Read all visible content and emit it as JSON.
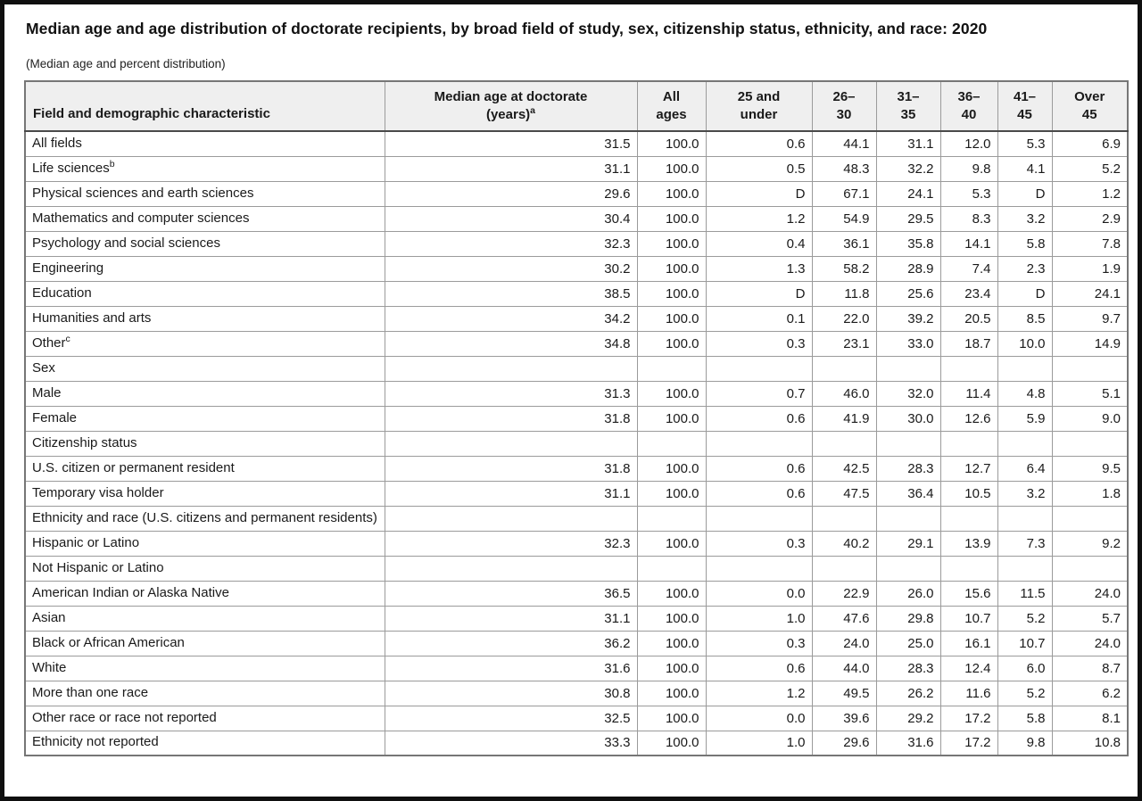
{
  "title": "Median age and age distribution of doctorate recipients, by broad field of study, sex, citizenship status, ethnicity, and race: 2020",
  "subtitle": "(Median age and percent distribution)",
  "colors": {
    "header_bg": "#efefef",
    "grid_line": "#9b9b9b",
    "header_bottom_border": "#4a4a4a",
    "table_outer_border": "#767676",
    "page_frame": "#0f0f0f",
    "text": "#1a1a1a"
  },
  "table": {
    "col_headers": {
      "field": "Field and demographic characteristic",
      "median_line1": "Median age at doctorate",
      "median_line2": "(years)",
      "median_sup": "a",
      "age_groups": [
        {
          "line1": "All",
          "line2": "ages"
        },
        {
          "line1": "25 and",
          "line2": "under"
        },
        {
          "line1": "26–",
          "line2": "30"
        },
        {
          "line1": "31–",
          "line2": "35"
        },
        {
          "line1": "36–",
          "line2": "40"
        },
        {
          "line1": "41–",
          "line2": "45"
        },
        {
          "line1": "Over",
          "line2": "45"
        }
      ]
    },
    "rows": [
      {
        "label": "All fields",
        "sup": "",
        "indent": 0,
        "values": [
          "31.5",
          "100.0",
          "0.6",
          "44.1",
          "31.1",
          "12.0",
          "5.3",
          "6.9"
        ]
      },
      {
        "label": "Life sciences",
        "sup": "b",
        "indent": 1,
        "values": [
          "31.1",
          "100.0",
          "0.5",
          "48.3",
          "32.2",
          "9.8",
          "4.1",
          "5.2"
        ]
      },
      {
        "label": "Physical sciences and earth sciences",
        "sup": "",
        "indent": 1,
        "values": [
          "29.6",
          "100.0",
          "D",
          "67.1",
          "24.1",
          "5.3",
          "D",
          "1.2"
        ]
      },
      {
        "label": "Mathematics and computer sciences",
        "sup": "",
        "indent": 1,
        "values": [
          "30.4",
          "100.0",
          "1.2",
          "54.9",
          "29.5",
          "8.3",
          "3.2",
          "2.9"
        ]
      },
      {
        "label": "Psychology and social sciences",
        "sup": "",
        "indent": 1,
        "values": [
          "32.3",
          "100.0",
          "0.4",
          "36.1",
          "35.8",
          "14.1",
          "5.8",
          "7.8"
        ]
      },
      {
        "label": "Engineering",
        "sup": "",
        "indent": 1,
        "values": [
          "30.2",
          "100.0",
          "1.3",
          "58.2",
          "28.9",
          "7.4",
          "2.3",
          "1.9"
        ]
      },
      {
        "label": "Education",
        "sup": "",
        "indent": 1,
        "values": [
          "38.5",
          "100.0",
          "D",
          "11.8",
          "25.6",
          "23.4",
          "D",
          "24.1"
        ]
      },
      {
        "label": "Humanities and arts",
        "sup": "",
        "indent": 1,
        "values": [
          "34.2",
          "100.0",
          "0.1",
          "22.0",
          "39.2",
          "20.5",
          "8.5",
          "9.7"
        ]
      },
      {
        "label": "Other",
        "sup": "c",
        "indent": 1,
        "values": [
          "34.8",
          "100.0",
          "0.3",
          "23.1",
          "33.0",
          "18.7",
          "10.0",
          "14.9"
        ]
      },
      {
        "label": "Sex",
        "sup": "",
        "indent": 1,
        "values": [
          "",
          "",
          "",
          "",
          "",
          "",
          "",
          ""
        ]
      },
      {
        "label": "Male",
        "sup": "",
        "indent": 2,
        "values": [
          "31.3",
          "100.0",
          "0.7",
          "46.0",
          "32.0",
          "11.4",
          "4.8",
          "5.1"
        ]
      },
      {
        "label": "Female",
        "sup": "",
        "indent": 2,
        "values": [
          "31.8",
          "100.0",
          "0.6",
          "41.9",
          "30.0",
          "12.6",
          "5.9",
          "9.0"
        ]
      },
      {
        "label": "Citizenship status",
        "sup": "",
        "indent": 1,
        "values": [
          "",
          "",
          "",
          "",
          "",
          "",
          "",
          ""
        ]
      },
      {
        "label": "U.S. citizen or permanent resident",
        "sup": "",
        "indent": 2,
        "values": [
          "31.8",
          "100.0",
          "0.6",
          "42.5",
          "28.3",
          "12.7",
          "6.4",
          "9.5"
        ]
      },
      {
        "label": "Temporary visa holder",
        "sup": "",
        "indent": 2,
        "values": [
          "31.1",
          "100.0",
          "0.6",
          "47.5",
          "36.4",
          "10.5",
          "3.2",
          "1.8"
        ]
      },
      {
        "label": "Ethnicity and race (U.S. citizens and permanent residents)",
        "sup": "",
        "indent": 1,
        "values": [
          "",
          "",
          "",
          "",
          "",
          "",
          "",
          ""
        ]
      },
      {
        "label": "Hispanic or Latino",
        "sup": "",
        "indent": 2,
        "values": [
          "32.3",
          "100.0",
          "0.3",
          "40.2",
          "29.1",
          "13.9",
          "7.3",
          "9.2"
        ]
      },
      {
        "label": "Not Hispanic or Latino",
        "sup": "",
        "indent": 2,
        "values": [
          "",
          "",
          "",
          "",
          "",
          "",
          "",
          ""
        ]
      },
      {
        "label": "American Indian or Alaska Native",
        "sup": "",
        "indent": 3,
        "values": [
          "36.5",
          "100.0",
          "0.0",
          "22.9",
          "26.0",
          "15.6",
          "11.5",
          "24.0"
        ]
      },
      {
        "label": "Asian",
        "sup": "",
        "indent": 3,
        "values": [
          "31.1",
          "100.0",
          "1.0",
          "47.6",
          "29.8",
          "10.7",
          "5.2",
          "5.7"
        ]
      },
      {
        "label": "Black or African American",
        "sup": "",
        "indent": 3,
        "values": [
          "36.2",
          "100.0",
          "0.3",
          "24.0",
          "25.0",
          "16.1",
          "10.7",
          "24.0"
        ]
      },
      {
        "label": "White",
        "sup": "",
        "indent": 3,
        "values": [
          "31.6",
          "100.0",
          "0.6",
          "44.0",
          "28.3",
          "12.4",
          "6.0",
          "8.7"
        ]
      },
      {
        "label": "More than one race",
        "sup": "",
        "indent": 3,
        "values": [
          "30.8",
          "100.0",
          "1.2",
          "49.5",
          "26.2",
          "11.6",
          "5.2",
          "6.2"
        ]
      },
      {
        "label": "Other race or race not reported",
        "sup": "",
        "indent": 3,
        "values": [
          "32.5",
          "100.0",
          "0.0",
          "39.6",
          "29.2",
          "17.2",
          "5.8",
          "8.1"
        ]
      },
      {
        "label": "Ethnicity not reported",
        "sup": "",
        "indent": 2,
        "values": [
          "33.3",
          "100.0",
          "1.0",
          "29.6",
          "31.6",
          "17.2",
          "9.8",
          "10.8"
        ]
      }
    ]
  }
}
